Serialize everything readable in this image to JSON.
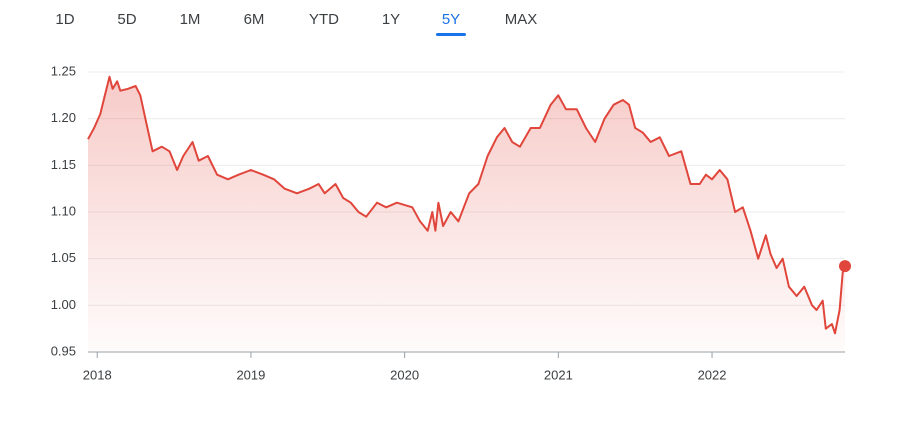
{
  "tabs": {
    "labels": [
      "1D",
      "5D",
      "1M",
      "6M",
      "YTD",
      "1Y",
      "5Y",
      "MAX"
    ],
    "selected": 6
  },
  "chart_data": {
    "type": "line",
    "color": "#e0463b",
    "x": [
      2017.94,
      2017.98,
      2018.02,
      2018.05,
      2018.08,
      2018.1,
      2018.13,
      2018.15,
      2018.2,
      2018.25,
      2018.28,
      2018.32,
      2018.36,
      2018.42,
      2018.47,
      2018.52,
      2018.56,
      2018.62,
      2018.66,
      2018.72,
      2018.78,
      2018.85,
      2018.92,
      2019.0,
      2019.08,
      2019.15,
      2019.22,
      2019.3,
      2019.38,
      2019.44,
      2019.48,
      2019.55,
      2019.6,
      2019.65,
      2019.7,
      2019.75,
      2019.82,
      2019.88,
      2019.95,
      2020.05,
      2020.1,
      2020.15,
      2020.18,
      2020.2,
      2020.22,
      2020.25,
      2020.3,
      2020.35,
      2020.42,
      2020.48,
      2020.54,
      2020.6,
      2020.65,
      2020.7,
      2020.75,
      2020.82,
      2020.88,
      2020.95,
      2021.0,
      2021.05,
      2021.12,
      2021.18,
      2021.24,
      2021.3,
      2021.36,
      2021.42,
      2021.46,
      2021.5,
      2021.55,
      2021.6,
      2021.66,
      2021.72,
      2021.8,
      2021.86,
      2021.92,
      2021.96,
      2022.0,
      2022.05,
      2022.1,
      2022.15,
      2022.2,
      2022.25,
      2022.3,
      2022.35,
      2022.38,
      2022.42,
      2022.46,
      2022.5,
      2022.55,
      2022.6,
      2022.65,
      2022.68,
      2022.72,
      2022.74,
      2022.78,
      2022.8,
      2022.83,
      2022.85,
      2022.865
    ],
    "values": [
      1.178,
      1.19,
      1.205,
      1.225,
      1.245,
      1.232,
      1.24,
      1.23,
      1.232,
      1.235,
      1.225,
      1.195,
      1.165,
      1.17,
      1.165,
      1.145,
      1.16,
      1.175,
      1.155,
      1.16,
      1.14,
      1.135,
      1.14,
      1.145,
      1.14,
      1.135,
      1.125,
      1.12,
      1.125,
      1.13,
      1.12,
      1.13,
      1.115,
      1.11,
      1.1,
      1.095,
      1.11,
      1.105,
      1.11,
      1.105,
      1.09,
      1.08,
      1.1,
      1.08,
      1.11,
      1.085,
      1.1,
      1.09,
      1.12,
      1.13,
      1.16,
      1.18,
      1.19,
      1.175,
      1.17,
      1.19,
      1.19,
      1.215,
      1.225,
      1.21,
      1.21,
      1.19,
      1.175,
      1.2,
      1.215,
      1.22,
      1.215,
      1.19,
      1.185,
      1.175,
      1.18,
      1.16,
      1.165,
      1.13,
      1.13,
      1.14,
      1.135,
      1.145,
      1.135,
      1.1,
      1.105,
      1.08,
      1.05,
      1.075,
      1.055,
      1.04,
      1.05,
      1.02,
      1.01,
      1.02,
      1.0,
      0.995,
      1.005,
      0.975,
      0.98,
      0.97,
      0.995,
      1.035,
      1.042
    ],
    "xlim": [
      2017.94,
      2022.865
    ],
    "xticks": [
      2018,
      2019,
      2020,
      2021,
      2022
    ],
    "ylim": [
      0.95,
      1.25
    ],
    "yticks": [
      0.95,
      {
        "value": 1,
        "label": "1.00"
      },
      1.05,
      {
        "value": 1.1,
        "label": "1.10"
      },
      1.15,
      {
        "value": 1.2,
        "label": "1.20"
      },
      1.25
    ],
    "grid": true
  }
}
